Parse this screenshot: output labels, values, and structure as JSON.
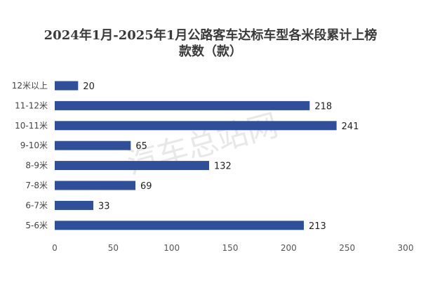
{
  "chart_data": {
    "type": "bar",
    "orientation": "horizontal",
    "title_line1": "2024年1月-2025年1月公路客车达标车型各米段累计上榜",
    "title_line2": "款数（款）",
    "categories": [
      "12米以上",
      "11-12米",
      "10-11米",
      "9-10米",
      "8-9米",
      "7-8米",
      "6-7米",
      "5-6米"
    ],
    "values": [
      20,
      218,
      241,
      65,
      132,
      69,
      33,
      213
    ],
    "xlim": [
      0,
      300
    ],
    "xticks": [
      0,
      50,
      100,
      150,
      200,
      250,
      300
    ],
    "bar_color": "#2f4f9b",
    "grid": false,
    "legend": "none",
    "data_labels": true
  },
  "watermark": "汽车总站网"
}
